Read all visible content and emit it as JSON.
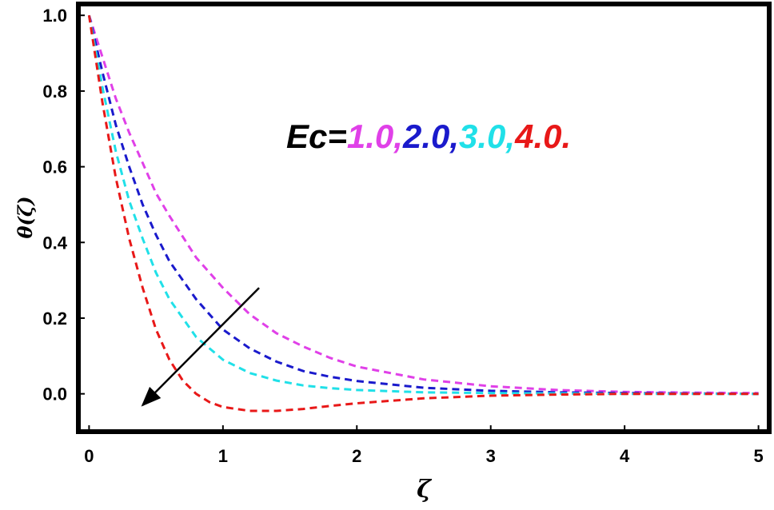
{
  "chart_data": {
    "type": "line",
    "xlabel": "ζ",
    "ylabel": "θ(ζ)",
    "xlim": [
      -0.08,
      5.08
    ],
    "ylim": [
      -0.1,
      1.03
    ],
    "x_ticks": [
      "0",
      "1",
      "2",
      "3",
      "4",
      "5"
    ],
    "y_ticks": [
      "0.0",
      "0.2",
      "0.4",
      "0.6",
      "0.8",
      "1.0"
    ],
    "grid": false,
    "legend_annotation": {
      "prefix": "Ec=",
      "prefix_color": "#000000",
      "entries": [
        {
          "text": "1.0,",
          "color": "#e040e8"
        },
        {
          "text": "2.0,",
          "color": "#1a1acc"
        },
        {
          "text": "3.0,",
          "color": "#20e0e8"
        },
        {
          "text": "4.0.",
          "color": "#e81818"
        }
      ]
    },
    "arrow": {
      "from": [
        1.27,
        0.28
      ],
      "to": [
        0.4,
        -0.03
      ],
      "color": "#000000"
    },
    "series": [
      {
        "color": "#e040e8",
        "line_style": "dashed",
        "x": [
          0,
          0.1,
          0.2,
          0.3,
          0.4,
          0.5,
          0.6,
          0.8,
          1.0,
          1.2,
          1.4,
          1.6,
          1.8,
          2.0,
          2.5,
          3.0,
          3.5,
          4.0,
          4.5,
          5.0
        ],
        "y": [
          1.0,
          0.89,
          0.78,
          0.69,
          0.61,
          0.53,
          0.47,
          0.36,
          0.28,
          0.21,
          0.16,
          0.125,
          0.095,
          0.072,
          0.038,
          0.02,
          0.01,
          0.005,
          0.003,
          0.002
        ]
      },
      {
        "color": "#1a1acc",
        "line_style": "dashed",
        "x": [
          0,
          0.1,
          0.2,
          0.3,
          0.4,
          0.5,
          0.6,
          0.8,
          1.0,
          1.2,
          1.4,
          1.6,
          1.8,
          2.0,
          2.5,
          3.0,
          3.5,
          4.0,
          4.5,
          5.0
        ],
        "y": [
          1.0,
          0.85,
          0.71,
          0.6,
          0.5,
          0.42,
          0.35,
          0.25,
          0.17,
          0.12,
          0.085,
          0.06,
          0.045,
          0.034,
          0.016,
          0.008,
          0.004,
          0.002,
          0.001,
          0.0
        ]
      },
      {
        "color": "#20e0e8",
        "line_style": "dashed",
        "x": [
          0,
          0.1,
          0.2,
          0.3,
          0.4,
          0.5,
          0.6,
          0.8,
          1.0,
          1.2,
          1.4,
          1.6,
          1.8,
          2.0,
          2.5,
          3.0,
          3.5,
          4.0,
          4.5,
          5.0
        ],
        "y": [
          1.0,
          0.81,
          0.64,
          0.51,
          0.41,
          0.32,
          0.25,
          0.15,
          0.09,
          0.055,
          0.035,
          0.022,
          0.015,
          0.01,
          0.004,
          0.002,
          0.001,
          0.0,
          0.0,
          0.0
        ]
      },
      {
        "color": "#e81818",
        "line_style": "dashed",
        "x": [
          0,
          0.1,
          0.2,
          0.3,
          0.4,
          0.5,
          0.6,
          0.7,
          0.8,
          0.9,
          1.0,
          1.2,
          1.4,
          1.6,
          1.8,
          2.0,
          2.5,
          3.0,
          3.5,
          4.0,
          4.5,
          5.0
        ],
        "y": [
          1.0,
          0.77,
          0.57,
          0.41,
          0.28,
          0.17,
          0.09,
          0.035,
          0.0,
          -0.022,
          -0.035,
          -0.045,
          -0.045,
          -0.04,
          -0.032,
          -0.025,
          -0.012,
          -0.005,
          -0.002,
          0.0,
          0.0,
          0.0
        ]
      }
    ]
  }
}
